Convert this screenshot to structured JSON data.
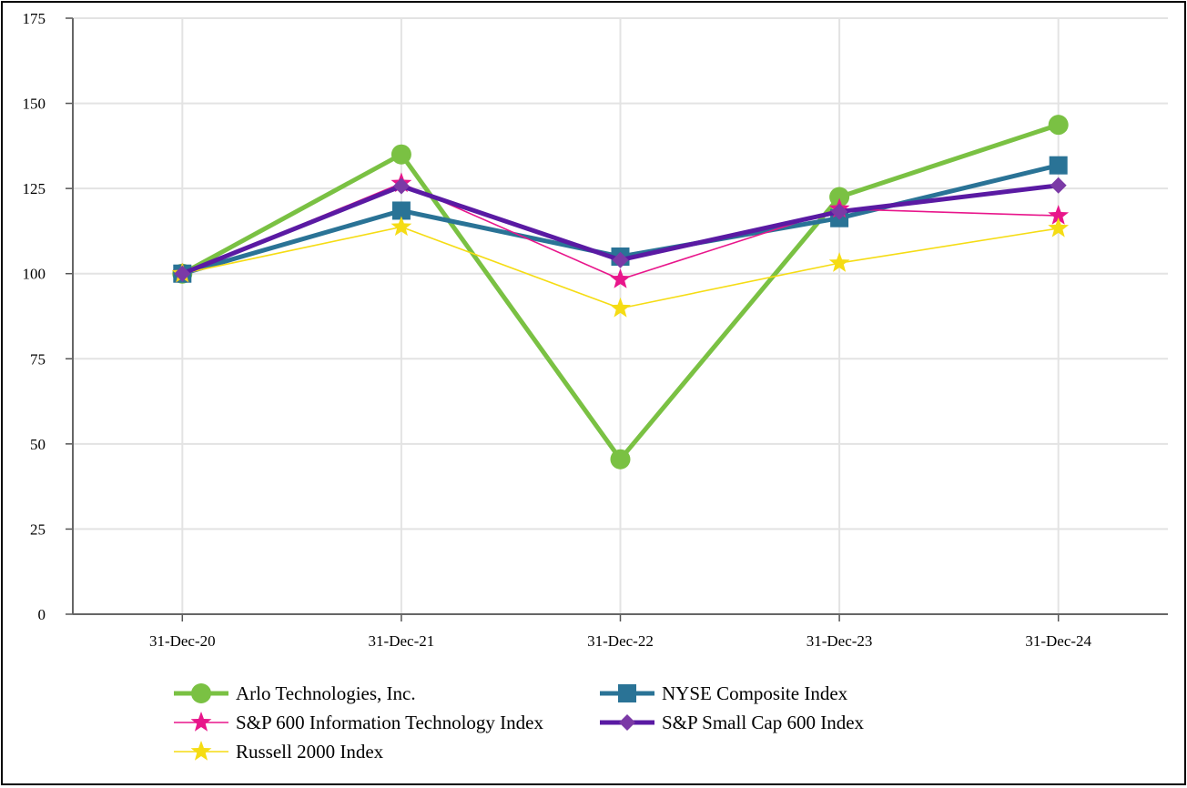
{
  "chart_data": {
    "type": "line",
    "title": "",
    "xlabel": "",
    "ylabel": "",
    "categories": [
      "31-Dec-20",
      "31-Dec-21",
      "31-Dec-22",
      "31-Dec-23",
      "31-Dec-24"
    ],
    "ylim": [
      0,
      175
    ],
    "yticks": [
      0,
      25,
      50,
      75,
      100,
      125,
      150,
      175
    ],
    "grid": true,
    "legend_position": "bottom",
    "series": [
      {
        "name": "Arlo Technologies, Inc.",
        "values": [
          100,
          135,
          45.5,
          122.5,
          143.7
        ],
        "color": "#7ac143",
        "marker": "circle",
        "line_weight": "thick"
      },
      {
        "name": "NYSE Composite Index",
        "values": [
          100,
          118.5,
          105,
          116.3,
          131.8
        ],
        "color": "#2a7396",
        "marker": "square",
        "line_weight": "thick"
      },
      {
        "name": "S&P 600 Information Technology Index",
        "values": [
          100,
          126.5,
          98.3,
          119,
          117
        ],
        "color": "#e8168b",
        "marker": "star",
        "line_weight": "thin"
      },
      {
        "name": "S&P Small Cap 600 Index",
        "values": [
          100,
          125.7,
          104,
          118.2,
          125.9
        ],
        "color": "#5a1aa3",
        "marker": "diamond",
        "line_weight": "thick",
        "marker_color": "#7b3aa6"
      },
      {
        "name": "Russell 2000 Index",
        "values": [
          100,
          113.7,
          89.8,
          103.1,
          113.3
        ],
        "color": "#f5dc14",
        "marker": "star",
        "line_weight": "thin"
      }
    ]
  }
}
